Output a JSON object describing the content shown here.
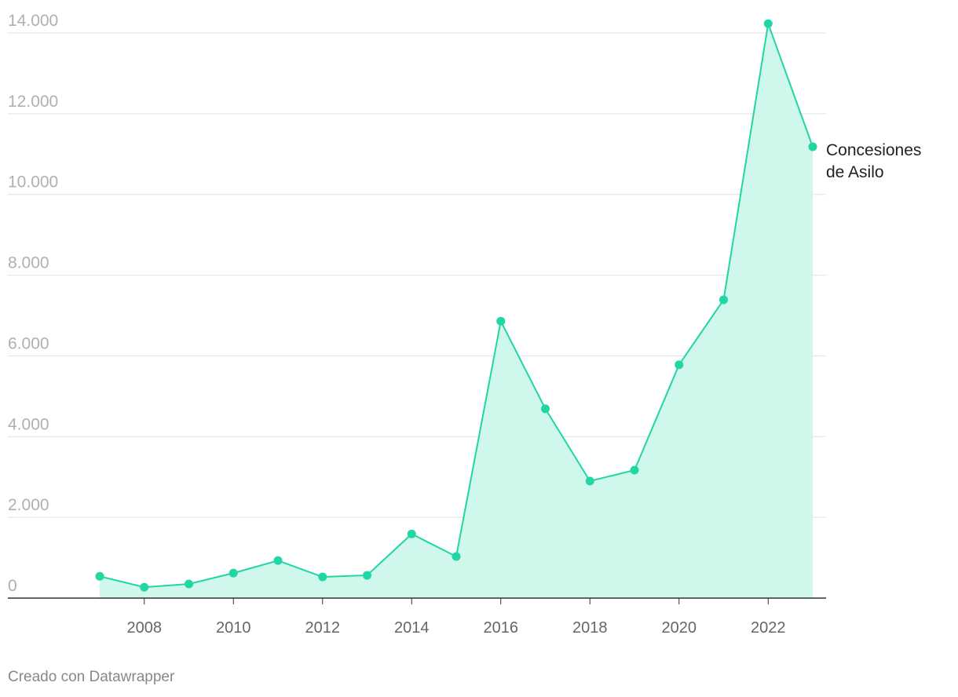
{
  "chart_data": {
    "type": "line",
    "x": [
      2007,
      2008,
      2009,
      2010,
      2011,
      2012,
      2013,
      2014,
      2015,
      2016,
      2017,
      2018,
      2019,
      2020,
      2021,
      2022,
      2023
    ],
    "series": [
      {
        "name": "Concesiones de Asilo",
        "color": "#1fd6a4",
        "values": [
          540,
          270,
          350,
          620,
          930,
          525,
          565,
          1590,
          1030,
          6860,
          4690,
          2900,
          3170,
          5780,
          7390,
          14230,
          11180
        ]
      }
    ],
    "area_color": "#cff7ec",
    "xlim": [
      2007,
      2023
    ],
    "xticks": [
      2008,
      2010,
      2012,
      2014,
      2016,
      2018,
      2020,
      2022
    ],
    "ylim": [
      0,
      14000
    ],
    "yticks": [
      0,
      {
        "value": 2000,
        "label": "2.000"
      },
      {
        "value": 4000,
        "label": "4.000"
      },
      {
        "value": 6000,
        "label": "6.000"
      },
      {
        "value": 8000,
        "label": "8.000"
      },
      {
        "value": 10000,
        "label": "10.000"
      },
      {
        "value": 12000,
        "label": "12.000"
      },
      {
        "value": 14000,
        "label": "14.000"
      }
    ],
    "grid": true,
    "credit": "Creado con Datawrapper"
  }
}
